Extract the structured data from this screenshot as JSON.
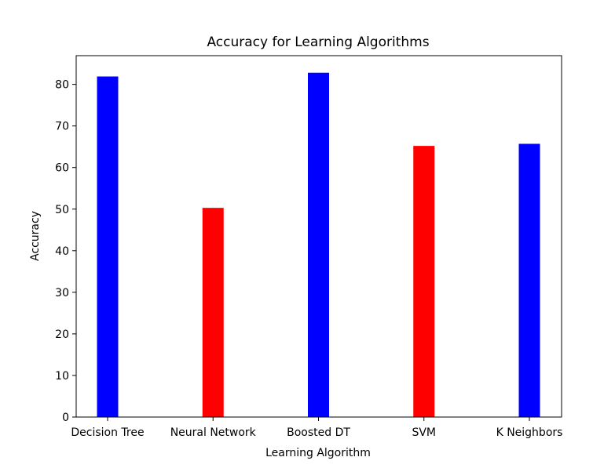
{
  "chart_data": {
    "type": "bar",
    "title": "Accuracy for Learning Algorithms",
    "xlabel": "Learning Algorithm",
    "ylabel": "Accuracy",
    "categories": [
      "Decision Tree",
      "Neural Network",
      "Boosted DT",
      "SVM",
      "K Neighbors"
    ],
    "values": [
      81.9,
      50.3,
      82.8,
      65.2,
      65.7
    ],
    "bar_colors": [
      "#0000ff",
      "#ff0000",
      "#0000ff",
      "#ff0000",
      "#0000ff"
    ],
    "ylim": [
      0,
      86.9
    ],
    "yticks": [
      0,
      10,
      20,
      30,
      40,
      50,
      60,
      70,
      80
    ],
    "grid": false,
    "legend": "none"
  }
}
